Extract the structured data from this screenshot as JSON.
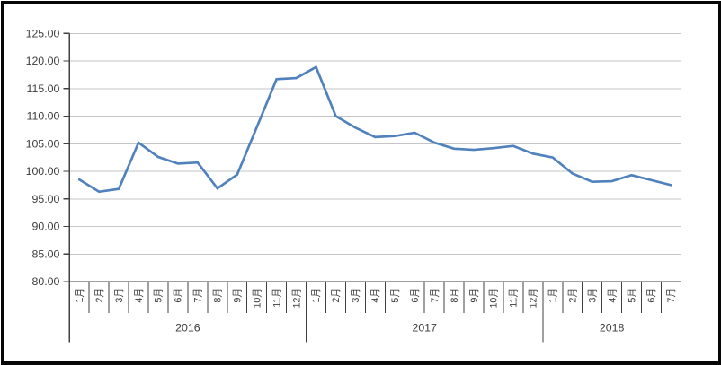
{
  "chart_data": {
    "type": "line",
    "title": "",
    "xlabel": "",
    "ylabel": "",
    "ylim": [
      80,
      125
    ],
    "y_tick_step": 5,
    "y_tick_labels": [
      "80.00",
      "85.00",
      "90.00",
      "95.00",
      "100.00",
      "105.00",
      "110.00",
      "115.00",
      "120.00",
      "125.00"
    ],
    "grid": "horizontal",
    "legend_position": "none",
    "line_color": "#4F81BD",
    "grid_color": "#c6c6c6",
    "axis_color": "#404040",
    "groups": [
      {
        "year": "2016",
        "months": [
          "1月",
          "2月",
          "3月",
          "4月",
          "5月",
          "6月",
          "7月",
          "8月",
          "9月",
          "10月",
          "11月",
          "12月"
        ],
        "values": [
          98.5,
          96.3,
          96.8,
          105.2,
          102.6,
          101.4,
          101.6,
          96.9,
          99.4,
          108.0,
          116.7,
          116.9
        ]
      },
      {
        "year": "2017",
        "months": [
          "1月",
          "2月",
          "3月",
          "4月",
          "5月",
          "6月",
          "7月",
          "8月",
          "9月",
          "10月",
          "11月",
          "12月"
        ],
        "values": [
          118.9,
          110.0,
          107.9,
          106.2,
          106.4,
          107.0,
          105.2,
          104.1,
          103.9,
          104.2,
          104.6,
          103.2
        ]
      },
      {
        "year": "2018",
        "months": [
          "1月",
          "2月",
          "3月",
          "4月",
          "5月",
          "6月",
          "7月"
        ],
        "values": [
          102.5,
          99.6,
          98.1,
          98.2,
          99.3,
          98.4,
          97.5
        ]
      }
    ]
  }
}
